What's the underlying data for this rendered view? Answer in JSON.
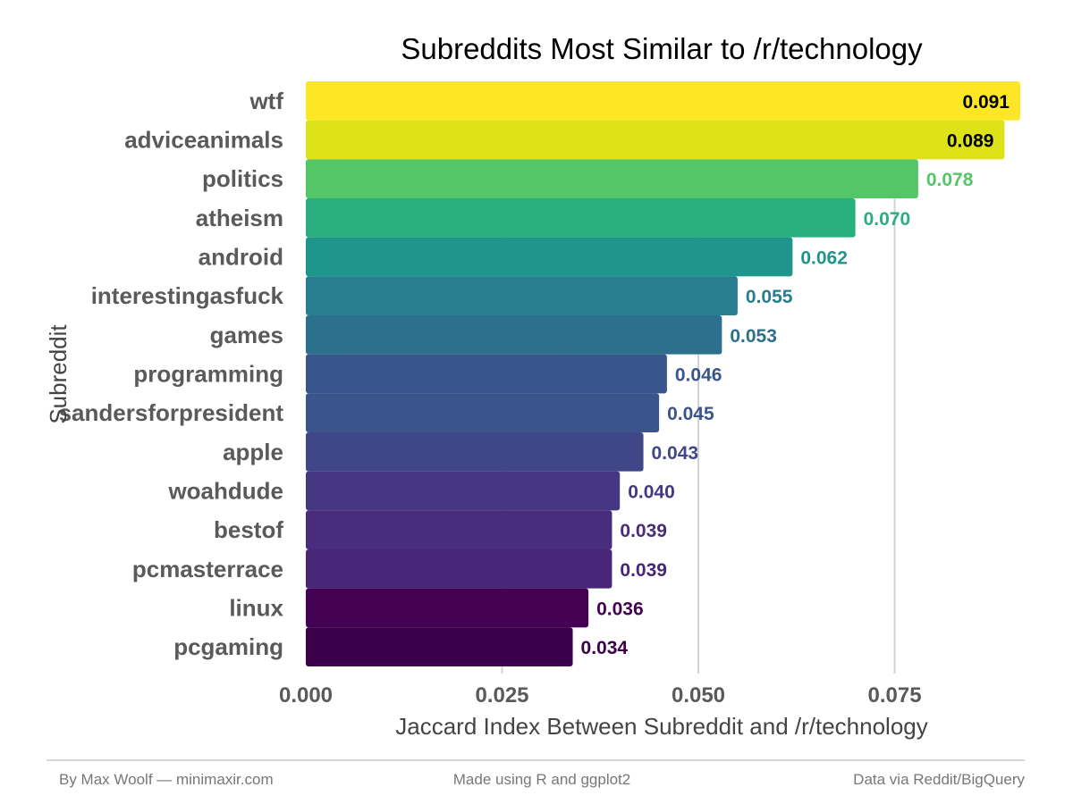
{
  "chart_data": {
    "type": "bar",
    "orientation": "horizontal",
    "title": "Subreddits Most Similar to /r/technology",
    "xlabel": "Jaccard Index Between Subreddit and /r/technology",
    "ylabel": "Subreddit",
    "xlim": [
      0,
      0.091
    ],
    "x_ticks": [
      0.0,
      0.025,
      0.05,
      0.075
    ],
    "x_tick_labels": [
      "0.000",
      "0.025",
      "0.050",
      "0.075"
    ],
    "grid": "vertical-major",
    "categories": [
      "wtf",
      "adviceanimals",
      "politics",
      "atheism",
      "android",
      "interestingasfuck",
      "games",
      "programming",
      "sandersforpresident",
      "apple",
      "woahdude",
      "bestof",
      "pcmasterrace",
      "linux",
      "pcgaming"
    ],
    "values": [
      0.091,
      0.089,
      0.078,
      0.07,
      0.062,
      0.055,
      0.053,
      0.046,
      0.045,
      0.043,
      0.04,
      0.039,
      0.039,
      0.036,
      0.034
    ],
    "value_labels": [
      "0.091",
      "0.089",
      "0.078",
      "0.070",
      "0.062",
      "0.055",
      "0.053",
      "0.046",
      "0.045",
      "0.043",
      "0.040",
      "0.039",
      "0.039",
      "0.036",
      "0.034"
    ],
    "colors": [
      "#FDE725",
      "#DDE318",
      "#55C667",
      "#29AF7F",
      "#1F968B",
      "#287D8E",
      "#2D708E",
      "#39568C",
      "#3A548C",
      "#3F4788",
      "#453781",
      "#472D7B",
      "#482677",
      "#440154",
      "#3A0049"
    ],
    "value_label_colors": [
      "#000000",
      "#000000",
      "#55C667",
      "#29AF7F",
      "#1F968B",
      "#287D8E",
      "#2D708E",
      "#39568C",
      "#3A548C",
      "#3F4788",
      "#453781",
      "#472D7B",
      "#482677",
      "#440154",
      "#3A0049"
    ],
    "color_scale": "viridis"
  },
  "footer": {
    "left": "By Max Woolf — minimaxir.com",
    "center": "Made using R and ggplot2",
    "right": "Data via Reddit/BigQuery"
  }
}
